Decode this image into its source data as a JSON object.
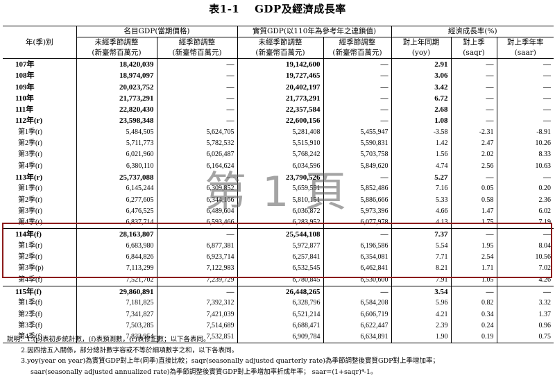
{
  "title": {
    "number": "表1-1",
    "text": "GDP及經濟成長率"
  },
  "headers": {
    "row_label": "年(季)別",
    "nominal_group": "名目GDP(當期價格)",
    "real_group": "實質GDP(以110年為參考年之連鎖值)",
    "growth_group": "經濟成長率(%)",
    "unadjusted": "未經季節調整",
    "adjusted": "經季節調整",
    "unit": "(新臺幣百萬元)",
    "yoy_top": "對上年同期",
    "yoy_bot": "(yoy)",
    "saqr_top": "對上季",
    "saqr_bot": "(saqr)",
    "saar_top": "對上季年率",
    "saar_bot": "(saar)"
  },
  "rows": [
    {
      "label": "107年",
      "nom_u": "18,420,039",
      "nom_a": "—",
      "real_u": "19,142,600",
      "real_a": "—",
      "yoy": "2.91",
      "saqr": "—",
      "saar": "—",
      "annual": true,
      "sep": true
    },
    {
      "label": "108年",
      "nom_u": "18,974,097",
      "nom_a": "—",
      "real_u": "19,727,465",
      "real_a": "—",
      "yoy": "3.06",
      "saqr": "—",
      "saar": "—",
      "annual": true
    },
    {
      "label": "109年",
      "nom_u": "20,023,752",
      "nom_a": "—",
      "real_u": "20,402,197",
      "real_a": "—",
      "yoy": "3.42",
      "saqr": "—",
      "saar": "—",
      "annual": true
    },
    {
      "label": "110年",
      "nom_u": "21,773,291",
      "nom_a": "—",
      "real_u": "21,773,291",
      "real_a": "—",
      "yoy": "6.72",
      "saqr": "—",
      "saar": "—",
      "annual": true
    },
    {
      "label": "111年",
      "nom_u": "22,820,430",
      "nom_a": "—",
      "real_u": "22,357,584",
      "real_a": "—",
      "yoy": "2.68",
      "saqr": "—",
      "saar": "—",
      "annual": true
    },
    {
      "label": "112年(r)",
      "nom_u": "23,598,348",
      "nom_a": "—",
      "real_u": "22,600,156",
      "real_a": "—",
      "yoy": "1.08",
      "saqr": "—",
      "saar": "—",
      "annual": true
    },
    {
      "label": "第1季(r)",
      "nom_u": "5,484,505",
      "nom_a": "5,624,705",
      "real_u": "5,281,408",
      "real_a": "5,455,947",
      "yoy": "-3.58",
      "saqr": "-2.31",
      "saar": "-8.91"
    },
    {
      "label": "第2季(r)",
      "nom_u": "5,711,773",
      "nom_a": "5,782,532",
      "real_u": "5,515,910",
      "real_a": "5,590,831",
      "yoy": "1.42",
      "saqr": "2.47",
      "saar": "10.26"
    },
    {
      "label": "第3季(r)",
      "nom_u": "6,021,960",
      "nom_a": "6,026,487",
      "real_u": "5,768,242",
      "real_a": "5,703,758",
      "yoy": "1.56",
      "saqr": "2.02",
      "saar": "8.33"
    },
    {
      "label": "第4季(r)",
      "nom_u": "6,380,110",
      "nom_a": "6,164,624",
      "real_u": "6,034,596",
      "real_a": "5,849,620",
      "yoy": "4.74",
      "saqr": "2.56",
      "saar": "10.63"
    },
    {
      "label": "113年(r)",
      "nom_u": "25,737,088",
      "nom_a": "—",
      "real_u": "23,790,526",
      "real_a": "—",
      "yoy": "5.27",
      "saqr": "—",
      "saar": "—",
      "annual": true
    },
    {
      "label": "第1季(r)",
      "nom_u": "6,145,244",
      "nom_a": "6,309,852",
      "real_u": "5,659,551",
      "real_a": "5,852,486",
      "yoy": "7.16",
      "saqr": "0.05",
      "saar": "0.20"
    },
    {
      "label": "第2季(r)",
      "nom_u": "6,277,605",
      "nom_a": "6,344,166",
      "real_u": "5,810,151",
      "real_a": "5,886,666",
      "yoy": "5.33",
      "saqr": "0.58",
      "saar": "2.36"
    },
    {
      "label": "第3季(r)",
      "nom_u": "6,476,525",
      "nom_a": "6,489,604",
      "real_u": "6,036,872",
      "real_a": "5,973,396",
      "yoy": "4.66",
      "saqr": "1.47",
      "saar": "6.02"
    },
    {
      "label": "第4季(r)",
      "nom_u": "6,837,714",
      "nom_a": "6,593,466",
      "real_u": "6,283,952",
      "real_a": "6,077,978",
      "yoy": "4.13",
      "saqr": "1.75",
      "saar": "7.19"
    },
    {
      "label": "114年(f)",
      "nom_u": "28,163,807",
      "nom_a": "—",
      "real_u": "25,544,108",
      "real_a": "—",
      "yoy": "7.37",
      "saqr": "—",
      "saar": "—",
      "annual": true,
      "sep": true
    },
    {
      "label": "第1季(r)",
      "nom_u": "6,683,980",
      "nom_a": "6,877,381",
      "real_u": "5,972,877",
      "real_a": "6,196,586",
      "yoy": "5.54",
      "saqr": "1.95",
      "saar": "8.04"
    },
    {
      "label": "第2季(r)",
      "nom_u": "6,844,826",
      "nom_a": "6,923,714",
      "real_u": "6,257,841",
      "real_a": "6,354,081",
      "yoy": "7.71",
      "saqr": "2.54",
      "saar": "10.56"
    },
    {
      "label": "第3季(p)",
      "nom_u": "7,113,299",
      "nom_a": "7,122,983",
      "real_u": "6,532,545",
      "real_a": "6,462,841",
      "yoy": "8.21",
      "saqr": "1.71",
      "saar": "7.02"
    },
    {
      "label": "第4季(f)",
      "nom_u": "7,521,702",
      "nom_a": "7,239,729",
      "real_u": "6,780,845",
      "real_a": "6,530,600",
      "yoy": "7.91",
      "saqr": "1.05",
      "saar": "4.26"
    },
    {
      "label": "115年(f)",
      "nom_u": "29,860,891",
      "nom_a": "—",
      "real_u": "26,448,265",
      "real_a": "—",
      "yoy": "3.54",
      "saqr": "—",
      "saar": "—",
      "annual": true,
      "sep": true
    },
    {
      "label": "第1季(f)",
      "nom_u": "7,181,825",
      "nom_a": "7,392,312",
      "real_u": "6,328,796",
      "real_a": "6,584,208",
      "yoy": "5.96",
      "saqr": "0.82",
      "saar": "3.32"
    },
    {
      "label": "第2季(f)",
      "nom_u": "7,341,827",
      "nom_a": "7,421,039",
      "real_u": "6,521,214",
      "real_a": "6,606,719",
      "yoy": "4.21",
      "saqr": "0.34",
      "saar": "1.37"
    },
    {
      "label": "第3季(f)",
      "nom_u": "7,503,285",
      "nom_a": "7,514,689",
      "real_u": "6,688,471",
      "real_a": "6,622,447",
      "yoy": "2.39",
      "saqr": "0.24",
      "saar": "0.96"
    },
    {
      "label": "第4季(f)",
      "nom_u": "7,833,954",
      "nom_a": "7,532,851",
      "real_u": "6,909,784",
      "real_a": "6,634,891",
      "yoy": "1.90",
      "saqr": "0.19",
      "saar": "0.75",
      "last": true
    }
  ],
  "watermark": "第 1 頁",
  "highlight_color": "#8b1a1a",
  "notes": [
    "說明：1.(p)表初步統計數，(f)表預測數，(r)表修正數；以下各表同。",
    "2.因四捨五入關係，部分總計數字容或不等於細項數字之和，以下各表同。",
    "3.yoy(year on year)為實質GDP對上年(同季)直接比較；saqr(seasonally adjusted quarterly rate)為季節調整後實質GDP對上季增加率；",
    "saar(seasonally adjusted annualized rate)為季節調整後實質GDP對上季增加率折成年率； saar=(1+saqr)⁴-1。"
  ]
}
